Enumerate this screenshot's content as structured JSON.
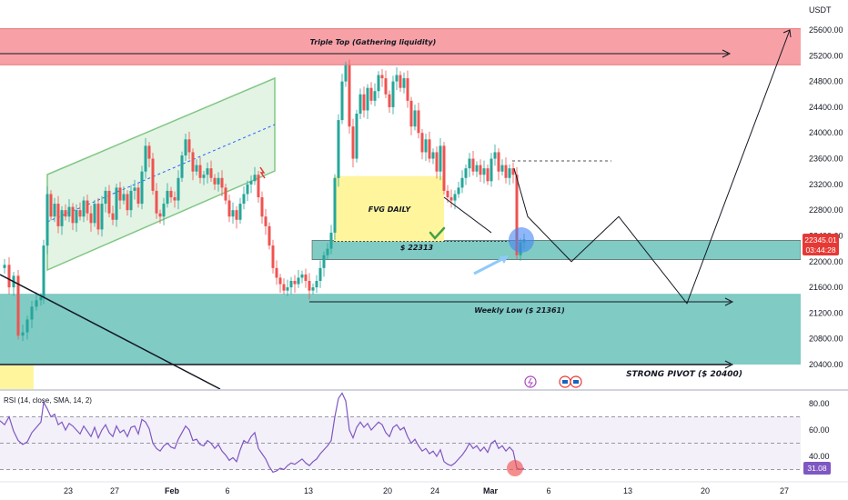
{
  "chart_data": {
    "type": "candlestick",
    "currency": "USDT",
    "price_axis": {
      "ticks": [
        "25600.00",
        "25200.00",
        "24800.00",
        "24400.00",
        "24000.00",
        "23600.00",
        "23200.00",
        "22800.00",
        "22400.00",
        "22000.00",
        "21600.00",
        "21200.00",
        "20800.00",
        "20400.00"
      ],
      "range": [
        20250,
        25900
      ]
    },
    "time_axis": {
      "ticks": [
        "23",
        "27",
        "Feb",
        "6",
        "13",
        "20",
        "24",
        "Mar",
        "6",
        "13",
        "20",
        "27"
      ]
    },
    "last_price": "22345.01",
    "countdown": "03:44:28",
    "zones": [
      {
        "label": "Triple Top (Gathering liquidity)",
        "top": 25620,
        "bottom": 25060,
        "color": "#f7a1a6"
      },
      {
        "label": "FVG DAILY",
        "top": 23330,
        "bottom": 22313,
        "color": "#fff59d"
      },
      {
        "label": "$ 22313",
        "top": 22330,
        "bottom": 22030,
        "color": "#80cbc4"
      },
      {
        "label": "Weekly Low ($ 21361)",
        "top": 21500,
        "bottom": 20400,
        "color": "#80cbc4"
      },
      {
        "label": "STRONG PIVOT ($ 20400)",
        "level": 20400
      }
    ],
    "price_path": [
      [
        0,
        21900
      ],
      [
        5,
        21950
      ],
      [
        10,
        21600
      ],
      [
        15,
        21780
      ],
      [
        20,
        20850
      ],
      [
        25,
        20900
      ],
      [
        30,
        21100
      ],
      [
        35,
        21300
      ],
      [
        40,
        21400
      ],
      [
        45,
        21450
      ],
      [
        48,
        22250
      ],
      [
        52,
        23050
      ],
      [
        56,
        22700
      ],
      [
        60,
        22900
      ],
      [
        64,
        22550
      ],
      [
        68,
        22800
      ],
      [
        72,
        22700
      ],
      [
        76,
        22850
      ],
      [
        80,
        22600
      ],
      [
        84,
        22800
      ],
      [
        88,
        22700
      ],
      [
        92,
        22950
      ],
      [
        96,
        22750
      ],
      [
        100,
        22600
      ],
      [
        104,
        22900
      ],
      [
        108,
        22500
      ],
      [
        112,
        22900
      ],
      [
        116,
        23100
      ],
      [
        120,
        22750
      ],
      [
        124,
        22650
      ],
      [
        128,
        23150
      ],
      [
        132,
        22950
      ],
      [
        136,
        23050
      ],
      [
        140,
        22800
      ],
      [
        144,
        23100
      ],
      [
        148,
        23150
      ],
      [
        152,
        22900
      ],
      [
        156,
        23400
      ],
      [
        160,
        23800
      ],
      [
        164,
        23600
      ],
      [
        168,
        23100
      ],
      [
        172,
        22750
      ],
      [
        176,
        22700
      ],
      [
        180,
        22900
      ],
      [
        184,
        23100
      ],
      [
        188,
        23000
      ],
      [
        192,
        22950
      ],
      [
        196,
        23300
      ],
      [
        200,
        23650
      ],
      [
        204,
        23900
      ],
      [
        208,
        23700
      ],
      [
        212,
        23400
      ],
      [
        216,
        23500
      ],
      [
        220,
        23300
      ],
      [
        224,
        23350
      ],
      [
        228,
        23450
      ],
      [
        232,
        23300
      ],
      [
        236,
        23200
      ],
      [
        240,
        23300
      ],
      [
        244,
        23150
      ],
      [
        248,
        22950
      ],
      [
        252,
        22700
      ],
      [
        256,
        22800
      ],
      [
        260,
        22650
      ],
      [
        264,
        22900
      ],
      [
        268,
        23050
      ],
      [
        272,
        23200
      ],
      [
        276,
        23250
      ],
      [
        280,
        23350
      ],
      [
        284,
        23000
      ],
      [
        288,
        22700
      ],
      [
        292,
        22550
      ],
      [
        296,
        22250
      ],
      [
        300,
        21900
      ],
      [
        304,
        21750
      ],
      [
        308,
        21650
      ],
      [
        312,
        21550
      ],
      [
        316,
        21600
      ],
      [
        320,
        21700
      ],
      [
        324,
        21650
      ],
      [
        328,
        21750
      ],
      [
        332,
        21800
      ],
      [
        336,
        21700
      ],
      [
        340,
        21550
      ],
      [
        344,
        21600
      ],
      [
        348,
        21700
      ],
      [
        352,
        21900
      ],
      [
        356,
        22100
      ],
      [
        360,
        22200
      ],
      [
        364,
        22450
      ],
      [
        368,
        23300
      ],
      [
        372,
        24200
      ],
      [
        376,
        24800
      ],
      [
        380,
        25050
      ],
      [
        384,
        24100
      ],
      [
        388,
        23600
      ],
      [
        392,
        24300
      ],
      [
        396,
        24600
      ],
      [
        400,
        24350
      ],
      [
        404,
        24700
      ],
      [
        408,
        24500
      ],
      [
        412,
        24650
      ],
      [
        416,
        24900
      ],
      [
        420,
        24850
      ],
      [
        424,
        24600
      ],
      [
        428,
        24400
      ],
      [
        432,
        24800
      ],
      [
        436,
        24900
      ],
      [
        440,
        24700
      ],
      [
        444,
        24850
      ],
      [
        448,
        24500
      ],
      [
        452,
        24100
      ],
      [
        456,
        24350
      ],
      [
        460,
        24000
      ],
      [
        464,
        23700
      ],
      [
        468,
        23900
      ],
      [
        472,
        23600
      ],
      [
        476,
        23700
      ],
      [
        480,
        23400
      ],
      [
        484,
        23800
      ],
      [
        488,
        23100
      ],
      [
        492,
        23000
      ],
      [
        496,
        22950
      ],
      [
        500,
        23050
      ],
      [
        504,
        23150
      ],
      [
        508,
        23300
      ],
      [
        512,
        23450
      ],
      [
        516,
        23600
      ],
      [
        520,
        23400
      ],
      [
        524,
        23500
      ],
      [
        528,
        23350
      ],
      [
        532,
        23450
      ],
      [
        536,
        23250
      ],
      [
        540,
        23600
      ],
      [
        544,
        23700
      ],
      [
        548,
        23400
      ],
      [
        552,
        23500
      ],
      [
        556,
        23300
      ],
      [
        560,
        23450
      ],
      [
        564,
        23350
      ],
      [
        568,
        22100
      ],
      [
        572,
        22300
      ],
      [
        576,
        22345
      ]
    ],
    "projection": [
      [
        565,
        23450
      ],
      [
        580,
        22700
      ],
      [
        628,
        22000
      ],
      [
        680,
        22700
      ],
      [
        755,
        21350
      ],
      [
        868,
        25600
      ]
    ],
    "rsi": {
      "title": "RSI (14, close, SMA, 14, 2)",
      "ticks": [
        "80.00",
        "60.00",
        "40.00"
      ],
      "levels": [
        70,
        50,
        30
      ],
      "last": "31.08",
      "values": [
        [
          0,
          67
        ],
        [
          5,
          64
        ],
        [
          10,
          70
        ],
        [
          15,
          59
        ],
        [
          20,
          52
        ],
        [
          25,
          49
        ],
        [
          30,
          51
        ],
        [
          35,
          58
        ],
        [
          40,
          62
        ],
        [
          45,
          66
        ],
        [
          48,
          81
        ],
        [
          52,
          76
        ],
        [
          56,
          70
        ],
        [
          60,
          72
        ],
        [
          64,
          64
        ],
        [
          68,
          66
        ],
        [
          72,
          60
        ],
        [
          76,
          65
        ],
        [
          80,
          63
        ],
        [
          84,
          60
        ],
        [
          88,
          57
        ],
        [
          92,
          63
        ],
        [
          96,
          59
        ],
        [
          100,
          55
        ],
        [
          104,
          62
        ],
        [
          108,
          54
        ],
        [
          112,
          60
        ],
        [
          116,
          64
        ],
        [
          120,
          58
        ],
        [
          124,
          55
        ],
        [
          128,
          63
        ],
        [
          132,
          58
        ],
        [
          136,
          60
        ],
        [
          140,
          55
        ],
        [
          144,
          62
        ],
        [
          148,
          63
        ],
        [
          152,
          57
        ],
        [
          156,
          68
        ],
        [
          160,
          66
        ],
        [
          164,
          61
        ],
        [
          168,
          50
        ],
        [
          172,
          46
        ],
        [
          176,
          44
        ],
        [
          180,
          48
        ],
        [
          184,
          50
        ],
        [
          188,
          47
        ],
        [
          192,
          46
        ],
        [
          196,
          53
        ],
        [
          200,
          58
        ],
        [
          204,
          63
        ],
        [
          208,
          60
        ],
        [
          212,
          52
        ],
        [
          216,
          53
        ],
        [
          220,
          49
        ],
        [
          224,
          48
        ],
        [
          228,
          52
        ],
        [
          232,
          50
        ],
        [
          236,
          46
        ],
        [
          240,
          49
        ],
        [
          244,
          44
        ],
        [
          248,
          41
        ],
        [
          252,
          37
        ],
        [
          256,
          39
        ],
        [
          260,
          36
        ],
        [
          264,
          45
        ],
        [
          268,
          52
        ],
        [
          272,
          50
        ],
        [
          276,
          55
        ],
        [
          280,
          58
        ],
        [
          284,
          46
        ],
        [
          288,
          42
        ],
        [
          292,
          38
        ],
        [
          296,
          32
        ],
        [
          300,
          28
        ],
        [
          304,
          29
        ],
        [
          308,
          31
        ],
        [
          312,
          30
        ],
        [
          316,
          33
        ],
        [
          320,
          35
        ],
        [
          324,
          34
        ],
        [
          328,
          36
        ],
        [
          332,
          38
        ],
        [
          336,
          35
        ],
        [
          340,
          33
        ],
        [
          344,
          36
        ],
        [
          348,
          38
        ],
        [
          352,
          42
        ],
        [
          356,
          45
        ],
        [
          360,
          48
        ],
        [
          364,
          52
        ],
        [
          368,
          70
        ],
        [
          372,
          84
        ],
        [
          376,
          88
        ],
        [
          380,
          82
        ],
        [
          384,
          60
        ],
        [
          388,
          54
        ],
        [
          392,
          62
        ],
        [
          396,
          66
        ],
        [
          400,
          62
        ],
        [
          404,
          65
        ],
        [
          408,
          60
        ],
        [
          412,
          63
        ],
        [
          416,
          66
        ],
        [
          420,
          64
        ],
        [
          424,
          58
        ],
        [
          428,
          55
        ],
        [
          432,
          62
        ],
        [
          436,
          64
        ],
        [
          440,
          60
        ],
        [
          444,
          62
        ],
        [
          448,
          55
        ],
        [
          452,
          50
        ],
        [
          456,
          53
        ],
        [
          460,
          48
        ],
        [
          464,
          44
        ],
        [
          468,
          46
        ],
        [
          472,
          42
        ],
        [
          476,
          44
        ],
        [
          480,
          40
        ],
        [
          484,
          45
        ],
        [
          488,
          36
        ],
        [
          492,
          34
        ],
        [
          496,
          33
        ],
        [
          500,
          35
        ],
        [
          504,
          38
        ],
        [
          508,
          41
        ],
        [
          512,
          45
        ],
        [
          516,
          50
        ],
        [
          520,
          46
        ],
        [
          524,
          48
        ],
        [
          528,
          44
        ],
        [
          532,
          47
        ],
        [
          536,
          43
        ],
        [
          540,
          50
        ],
        [
          544,
          52
        ],
        [
          548,
          46
        ],
        [
          552,
          48
        ],
        [
          556,
          44
        ],
        [
          560,
          47
        ],
        [
          564,
          44
        ],
        [
          568,
          31
        ],
        [
          572,
          30
        ],
        [
          576,
          31
        ]
      ]
    }
  }
}
